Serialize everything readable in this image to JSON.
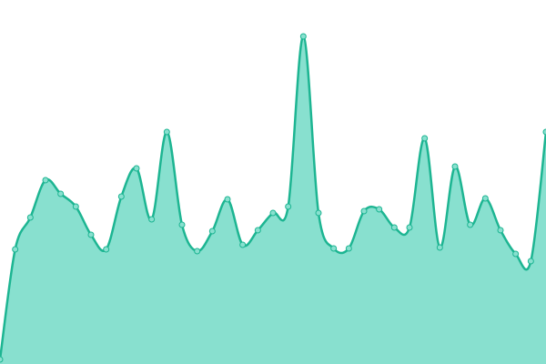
{
  "chart_data": {
    "type": "area",
    "values": [
      5,
      126,
      161,
      202,
      187,
      173,
      142,
      126,
      184,
      215,
      159,
      255,
      153,
      124,
      146,
      181,
      131,
      147,
      166,
      173,
      360,
      166,
      127,
      127,
      168,
      170,
      150,
      150,
      248,
      128,
      217,
      153,
      182,
      147,
      121,
      113,
      255
    ],
    "ylim": [
      0,
      400
    ],
    "color": "#1db592",
    "fill": "#88e0cf"
  }
}
